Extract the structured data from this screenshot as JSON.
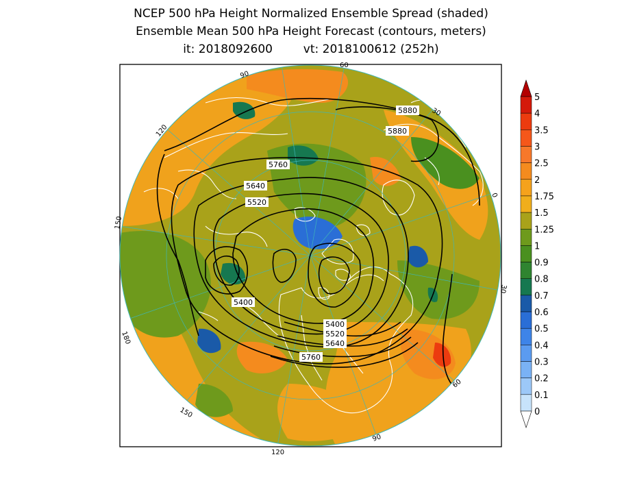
{
  "title": {
    "line1": "NCEP 500 hPa Height Normalized Ensemble Spread (shaded)",
    "line2": "Ensemble Mean 500 hPa Height Forecast (contours, meters)",
    "init_label": "it: 2018092600",
    "valid_label": "vt: 2018100612 (252h)"
  },
  "colorbar": {
    "levels": [
      "5",
      "4",
      "3.5",
      "3",
      "2.5",
      "2",
      "1.75",
      "1.5",
      "1.25",
      "1",
      "0.9",
      "0.8",
      "0.7",
      "0.6",
      "0.5",
      "0.4",
      "0.3",
      "0.2",
      "0.1",
      "0"
    ],
    "colors": [
      "#b30000",
      "#d41a0a",
      "#ec3b0f",
      "#f5571a",
      "#f7782a",
      "#f48b1e",
      "#f5a21c",
      "#f0ae1c",
      "#a9a21a",
      "#6e9a1c",
      "#4a901f",
      "#2f8430",
      "#167850",
      "#1a5aa8",
      "#2a6ed6",
      "#3e84e8",
      "#5b9bf0",
      "#7ab2f5",
      "#9cc8f8",
      "#c7e3fb"
    ]
  },
  "contour_labels": [
    {
      "id": "c5880a",
      "text": "5880"
    },
    {
      "id": "c5880b",
      "text": "5880"
    },
    {
      "id": "c5760a",
      "text": "5760"
    },
    {
      "id": "c5640a",
      "text": "5640"
    },
    {
      "id": "c5520a",
      "text": "5520"
    },
    {
      "id": "c5400a",
      "text": "5400"
    },
    {
      "id": "c5400b",
      "text": "5400"
    },
    {
      "id": "c5520b",
      "text": "5520"
    },
    {
      "id": "c5640b",
      "text": "5640"
    },
    {
      "id": "c5760b",
      "text": "5760"
    }
  ],
  "lon_labels": [
    {
      "id": "lon90a",
      "text": "90"
    },
    {
      "id": "lon60a",
      "text": "60"
    },
    {
      "id": "lon30a",
      "text": "30"
    },
    {
      "id": "lon0",
      "text": "0"
    },
    {
      "id": "lon30b",
      "text": "30"
    },
    {
      "id": "lon60b",
      "text": "60"
    },
    {
      "id": "lon90b",
      "text": "90"
    },
    {
      "id": "lon120b",
      "text": "120"
    },
    {
      "id": "lon150",
      "text": "150"
    },
    {
      "id": "lon180",
      "text": "180"
    },
    {
      "id": "lon150b",
      "text": "150"
    },
    {
      "id": "lon120a",
      "text": "120"
    }
  ],
  "colors": {
    "base_spread": "#7a9a1e",
    "ocean_high": "#f0931c",
    "low_spread": "#2a6ed6",
    "contour": "#000000",
    "coast": "#ffffff",
    "grid": "#3fb6b6"
  }
}
